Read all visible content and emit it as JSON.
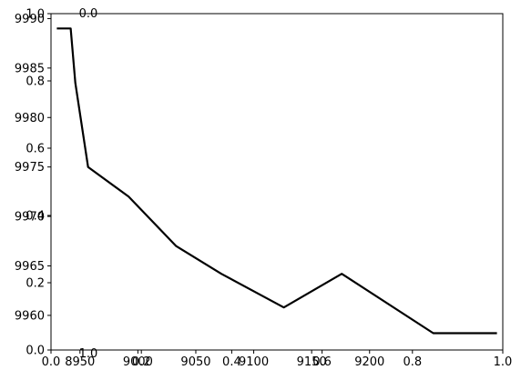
{
  "chart_data": {
    "type": "line",
    "title": "",
    "xlabel": "",
    "ylabel": "",
    "x": [
      8930,
      8942,
      8946,
      8957,
      8992,
      9033,
      9072,
      9126,
      9176,
      9255,
      9310
    ],
    "y": [
      9989,
      9989,
      9983.5,
      9975,
      9972,
      9967,
      9964.2,
      9960.8,
      9964.2,
      9958.2,
      9958.2
    ],
    "xlim": [
      8925,
      9315
    ],
    "ylim": [
      9956.5,
      9990.5
    ],
    "xticks": [
      "8950",
      "9000",
      "9050",
      "9100",
      "9150",
      "9200"
    ],
    "yticks": [
      "9960",
      "9965",
      "9970",
      "9975",
      "9980",
      "9985",
      "9990"
    ],
    "overlay_axes_ticks": [
      "0.0",
      "0.2",
      "0.4",
      "0.6",
      "0.8",
      "1.0"
    ],
    "overlay_label": "1.0",
    "line_color": "#000000",
    "grid": false,
    "legend": "none"
  }
}
